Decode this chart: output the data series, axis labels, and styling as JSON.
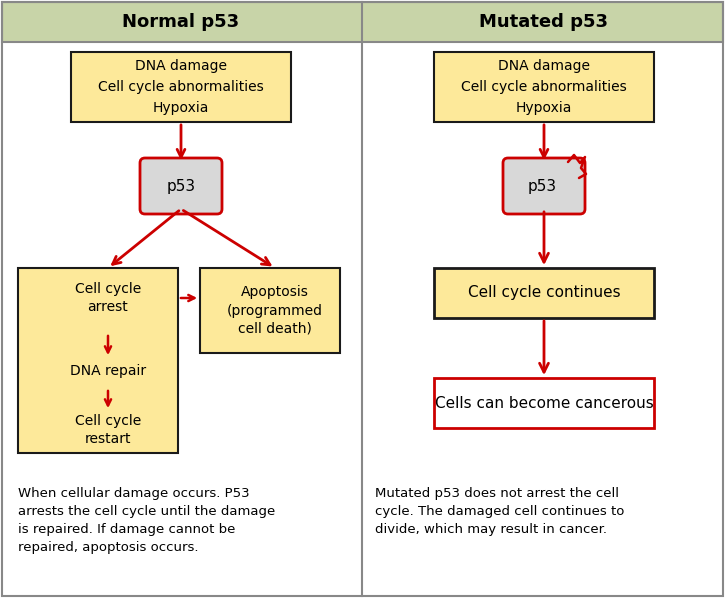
{
  "title_left": "Normal p53",
  "title_right": "Mutated p53",
  "header_bg": "#c8d4a8",
  "header_text_color": "#000000",
  "box_fill_yellow": "#fde99a",
  "box_fill_white": "#ffffff",
  "box_edge_dark": "#1a1a1a",
  "box_edge_red": "#cc0000",
  "arrow_color": "#cc0000",
  "divider_color": "#777777",
  "bg_color": "#ffffff",
  "text_color": "#000000",
  "caption_left": "When cellular damage occurs. P53\narrests the cell cycle until the damage\nis repaired. If damage cannot be\nrepaired, apoptosis occurs.",
  "caption_right": "Mutated p53 does not arrest the cell\ncycle. The damaged cell continues to\ndivide, which may result in cancer.",
  "box1_text": "DNA damage\nCell cycle abnormalities\nHypoxia",
  "box2_text": "p53",
  "box3l_line1": "Cell cycle",
  "box3l_line2": "arrest",
  "box3l_line3": "DNA repair",
  "box3l_line4": "Cell cycle",
  "box3l_line5": "restart",
  "box4l_text": "Apoptosis\n(programmed\ncell death)",
  "box3r_text": "Cell cycle continues",
  "box4r_text": "Cells can become cancerous"
}
